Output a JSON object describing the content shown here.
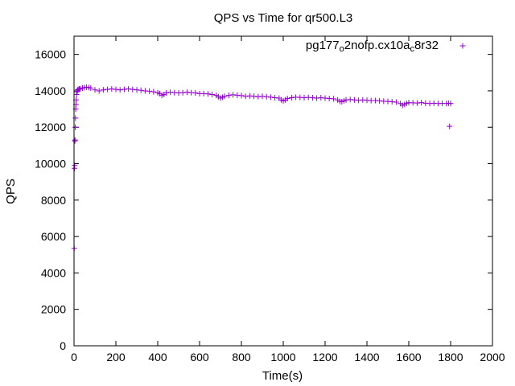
{
  "chart_data": {
    "type": "scatter",
    "title": "QPS vs Time for qr500.L3",
    "xlabel": "Time(s)",
    "ylabel": "QPS",
    "xlim": [
      0,
      2000
    ],
    "ylim": [
      0,
      17000
    ],
    "xticks": [
      0,
      200,
      400,
      600,
      800,
      1000,
      1200,
      1400,
      1600,
      1800,
      2000
    ],
    "yticks": [
      0,
      2000,
      4000,
      6000,
      8000,
      10000,
      12000,
      14000,
      16000
    ],
    "grid": false,
    "legend": {
      "placement": "top-right",
      "label_parts": [
        {
          "text": "pg177",
          "sub": false
        },
        {
          "text": "o",
          "sub": true
        },
        {
          "text": "2nofp.cx10a",
          "sub": false
        },
        {
          "text": "c",
          "sub": true
        },
        {
          "text": "8r32",
          "sub": false
        }
      ]
    },
    "series": [
      {
        "color": "#9400d3",
        "marker": "plus",
        "points": [
          [
            1,
            5350
          ],
          [
            2,
            9750
          ],
          [
            3,
            9900
          ],
          [
            4,
            11250
          ],
          [
            5,
            11300
          ],
          [
            6,
            12000
          ],
          [
            7,
            12500
          ],
          [
            8,
            13000
          ],
          [
            9,
            13250
          ],
          [
            10,
            13500
          ],
          [
            12,
            13800
          ],
          [
            14,
            13950
          ],
          [
            16,
            14000
          ],
          [
            18,
            14050
          ],
          [
            20,
            14080
          ],
          [
            25,
            14100
          ],
          [
            30,
            14120
          ],
          [
            40,
            14150
          ],
          [
            50,
            14180
          ],
          [
            60,
            14200
          ],
          [
            70,
            14180
          ],
          [
            80,
            14150
          ],
          [
            100,
            14050
          ],
          [
            120,
            14000
          ],
          [
            140,
            14050
          ],
          [
            160,
            14080
          ],
          [
            180,
            14100
          ],
          [
            200,
            14080
          ],
          [
            220,
            14050
          ],
          [
            240,
            14080
          ],
          [
            260,
            14100
          ],
          [
            280,
            14080
          ],
          [
            300,
            14050
          ],
          [
            320,
            14030
          ],
          [
            340,
            14000
          ],
          [
            360,
            13980
          ],
          [
            380,
            13950
          ],
          [
            400,
            13900
          ],
          [
            410,
            13850
          ],
          [
            420,
            13750
          ],
          [
            430,
            13800
          ],
          [
            440,
            13880
          ],
          [
            460,
            13920
          ],
          [
            480,
            13900
          ],
          [
            500,
            13880
          ],
          [
            520,
            13900
          ],
          [
            540,
            13920
          ],
          [
            560,
            13900
          ],
          [
            580,
            13880
          ],
          [
            600,
            13850
          ],
          [
            620,
            13850
          ],
          [
            640,
            13830
          ],
          [
            660,
            13800
          ],
          [
            680,
            13750
          ],
          [
            690,
            13680
          ],
          [
            700,
            13600
          ],
          [
            710,
            13650
          ],
          [
            720,
            13700
          ],
          [
            740,
            13750
          ],
          [
            760,
            13780
          ],
          [
            780,
            13760
          ],
          [
            800,
            13740
          ],
          [
            820,
            13700
          ],
          [
            840,
            13720
          ],
          [
            860,
            13700
          ],
          [
            880,
            13680
          ],
          [
            900,
            13700
          ],
          [
            920,
            13680
          ],
          [
            940,
            13650
          ],
          [
            960,
            13620
          ],
          [
            980,
            13600
          ],
          [
            990,
            13500
          ],
          [
            1000,
            13450
          ],
          [
            1010,
            13500
          ],
          [
            1020,
            13580
          ],
          [
            1040,
            13620
          ],
          [
            1060,
            13650
          ],
          [
            1080,
            13640
          ],
          [
            1100,
            13620
          ],
          [
            1120,
            13640
          ],
          [
            1140,
            13620
          ],
          [
            1160,
            13600
          ],
          [
            1180,
            13620
          ],
          [
            1200,
            13600
          ],
          [
            1220,
            13580
          ],
          [
            1240,
            13560
          ],
          [
            1260,
            13500
          ],
          [
            1270,
            13420
          ],
          [
            1280,
            13400
          ],
          [
            1290,
            13450
          ],
          [
            1300,
            13500
          ],
          [
            1320,
            13520
          ],
          [
            1340,
            13500
          ],
          [
            1360,
            13480
          ],
          [
            1380,
            13500
          ],
          [
            1400,
            13480
          ],
          [
            1420,
            13460
          ],
          [
            1440,
            13470
          ],
          [
            1460,
            13450
          ],
          [
            1480,
            13430
          ],
          [
            1500,
            13420
          ],
          [
            1520,
            13400
          ],
          [
            1540,
            13380
          ],
          [
            1560,
            13300
          ],
          [
            1570,
            13200
          ],
          [
            1580,
            13250
          ],
          [
            1590,
            13320
          ],
          [
            1600,
            13350
          ],
          [
            1620,
            13340
          ],
          [
            1640,
            13330
          ],
          [
            1660,
            13350
          ],
          [
            1680,
            13320
          ],
          [
            1700,
            13300
          ],
          [
            1720,
            13320
          ],
          [
            1740,
            13300
          ],
          [
            1760,
            13310
          ],
          [
            1780,
            13300
          ],
          [
            1790,
            13320
          ],
          [
            1795,
            12050
          ],
          [
            1800,
            13300
          ]
        ]
      }
    ]
  }
}
